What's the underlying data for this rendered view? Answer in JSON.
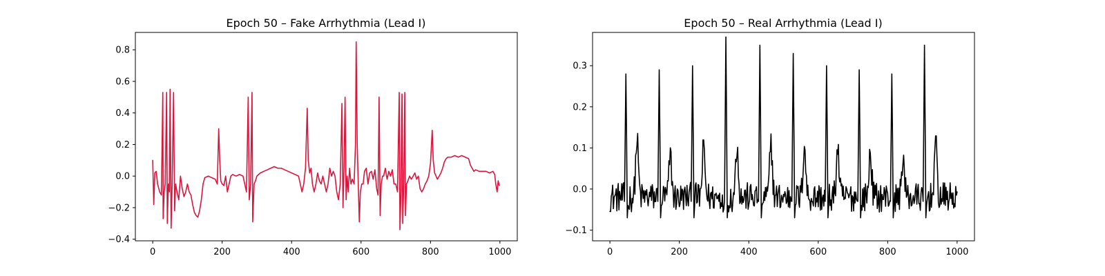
{
  "chart_data": [
    {
      "type": "line",
      "title": "Epoch 50 – Fake Arrhythmia (Lead I)",
      "xlabel": "",
      "ylabel": "",
      "xlim": [
        -50,
        1050
      ],
      "ylim": [
        -0.41,
        0.91
      ],
      "xticks": [
        0,
        200,
        400,
        600,
        800,
        1000
      ],
      "yticks": [
        -0.4,
        -0.2,
        0.0,
        0.2,
        0.4,
        0.6,
        0.8
      ],
      "xtick_labels": [
        "0",
        "200",
        "400",
        "600",
        "800",
        "1000"
      ],
      "ytick_labels": [
        "−0.4",
        "−0.2",
        "0.0",
        "0.2",
        "0.4",
        "0.6",
        "0.8"
      ],
      "grid": false,
      "series": [
        {
          "color": "#dc143c",
          "points": [
            [
              0,
              0.1
            ],
            [
              3,
              -0.18
            ],
            [
              6,
              0.02
            ],
            [
              10,
              0.03
            ],
            [
              14,
              -0.05
            ],
            [
              20,
              -0.1
            ],
            [
              25,
              -0.12
            ],
            [
              29,
              0.53
            ],
            [
              30,
              -0.27
            ],
            [
              33,
              -0.1
            ],
            [
              36,
              -0.05
            ],
            [
              40,
              0.53
            ],
            [
              42,
              -0.3
            ],
            [
              45,
              -0.05
            ],
            [
              48,
              -0.1
            ],
            [
              50,
              0.55
            ],
            [
              53,
              -0.33
            ],
            [
              56,
              -0.05
            ],
            [
              60,
              0.53
            ],
            [
              63,
              -0.22
            ],
            [
              66,
              -0.05
            ],
            [
              70,
              -0.1
            ],
            [
              75,
              -0.15
            ],
            [
              80,
              0.0
            ],
            [
              85,
              -0.08
            ],
            [
              90,
              -0.13
            ],
            [
              95,
              -0.1
            ],
            [
              100,
              -0.05
            ],
            [
              105,
              -0.1
            ],
            [
              110,
              -0.12
            ],
            [
              115,
              -0.18
            ],
            [
              120,
              -0.23
            ],
            [
              125,
              -0.25
            ],
            [
              130,
              -0.26
            ],
            [
              135,
              -0.22
            ],
            [
              140,
              -0.15
            ],
            [
              145,
              -0.05
            ],
            [
              150,
              -0.01
            ],
            [
              160,
              0.0
            ],
            [
              170,
              -0.01
            ],
            [
              180,
              -0.02
            ],
            [
              186,
              -0.05
            ],
            [
              190,
              0.3
            ],
            [
              193,
              0.1
            ],
            [
              196,
              -0.03
            ],
            [
              200,
              -0.05
            ],
            [
              205,
              -0.06
            ],
            [
              210,
              0.0
            ],
            [
              215,
              -0.1
            ],
            [
              220,
              -0.05
            ],
            [
              225,
              0.0
            ],
            [
              230,
              0.01
            ],
            [
              240,
              0.0
            ],
            [
              250,
              0.01
            ],
            [
              260,
              0.0
            ],
            [
              265,
              -0.05
            ],
            [
              270,
              -0.1
            ],
            [
              275,
              0.5
            ],
            [
              278,
              -0.15
            ],
            [
              282,
              -0.05
            ],
            [
              286,
              0.53
            ],
            [
              288,
              -0.29
            ],
            [
              292,
              -0.05
            ],
            [
              296,
              -0.03
            ],
            [
              300,
              0.0
            ],
            [
              310,
              0.02
            ],
            [
              320,
              0.03
            ],
            [
              330,
              0.04
            ],
            [
              340,
              0.05
            ],
            [
              350,
              0.06
            ],
            [
              360,
              0.05
            ],
            [
              370,
              0.05
            ],
            [
              380,
              0.04
            ],
            [
              390,
              0.03
            ],
            [
              400,
              0.02
            ],
            [
              410,
              0.01
            ],
            [
              420,
              0.0
            ],
            [
              425,
              -0.05
            ],
            [
              430,
              -0.1
            ],
            [
              435,
              -0.05
            ],
            [
              440,
              0.05
            ],
            [
              445,
              0.43
            ],
            [
              448,
              0.1
            ],
            [
              452,
              0.02
            ],
            [
              456,
              0.05
            ],
            [
              460,
              -0.05
            ],
            [
              465,
              -0.1
            ],
            [
              470,
              -0.05
            ],
            [
              475,
              0.02
            ],
            [
              480,
              -0.03
            ],
            [
              485,
              -0.05
            ],
            [
              490,
              0.0
            ],
            [
              495,
              -0.05
            ],
            [
              500,
              -0.1
            ],
            [
              505,
              -0.05
            ],
            [
              510,
              0.05
            ],
            [
              515,
              0.0
            ],
            [
              520,
              0.03
            ],
            [
              525,
              0.0
            ],
            [
              530,
              -0.1
            ],
            [
              535,
              -0.15
            ],
            [
              540,
              -0.05
            ],
            [
              545,
              0.46
            ],
            [
              548,
              -0.2
            ],
            [
              551,
              0.05
            ],
            [
              554,
              0.5
            ],
            [
              557,
              -0.15
            ],
            [
              560,
              0.0
            ],
            [
              563,
              -0.1
            ],
            [
              567,
              0.05
            ],
            [
              571,
              -0.05
            ],
            [
              575,
              -0.02
            ],
            [
              580,
              -0.05
            ],
            [
              584,
              0.2
            ],
            [
              586,
              0.85
            ],
            [
              589,
              0.2
            ],
            [
              592,
              -0.05
            ],
            [
              595,
              -0.29
            ],
            [
              598,
              -0.1
            ],
            [
              602,
              -0.05
            ],
            [
              606,
              -0.05
            ],
            [
              610,
              0.03
            ],
            [
              615,
              0.05
            ],
            [
              620,
              -0.05
            ],
            [
              625,
              0.02
            ],
            [
              630,
              0.03
            ],
            [
              635,
              -0.02
            ],
            [
              640,
              0.04
            ],
            [
              645,
              -0.08
            ],
            [
              649,
              -0.12
            ],
            [
              652,
              0.5
            ],
            [
              655,
              -0.25
            ],
            [
              658,
              -0.05
            ],
            [
              662,
              0.0
            ],
            [
              665,
              0.0
            ],
            [
              670,
              0.05
            ],
            [
              675,
              -0.02
            ],
            [
              680,
              0.03
            ],
            [
              685,
              0.0
            ],
            [
              690,
              0.04
            ],
            [
              695,
              -0.05
            ],
            [
              700,
              -0.05
            ],
            [
              705,
              -0.1
            ],
            [
              710,
              0.53
            ],
            [
              712,
              -0.34
            ],
            [
              715,
              -0.1
            ],
            [
              718,
              0.52
            ],
            [
              720,
              -0.3
            ],
            [
              723,
              -0.05
            ],
            [
              726,
              0.53
            ],
            [
              728,
              -0.25
            ],
            [
              731,
              -0.05
            ],
            [
              735,
              -0.03
            ],
            [
              740,
              0.0
            ],
            [
              745,
              -0.02
            ],
            [
              750,
              0.0
            ],
            [
              755,
              0.02
            ],
            [
              760,
              -0.02
            ],
            [
              765,
              0.0
            ],
            [
              770,
              -0.08
            ],
            [
              775,
              -0.1
            ],
            [
              780,
              -0.08
            ],
            [
              785,
              -0.05
            ],
            [
              790,
              -0.03
            ],
            [
              795,
              0.0
            ],
            [
              800,
              0.08
            ],
            [
              805,
              0.29
            ],
            [
              808,
              0.1
            ],
            [
              812,
              0.02
            ],
            [
              816,
              0.0
            ],
            [
              820,
              -0.02
            ],
            [
              825,
              0.0
            ],
            [
              830,
              0.02
            ],
            [
              835,
              0.05
            ],
            [
              840,
              0.09
            ],
            [
              845,
              0.11
            ],
            [
              850,
              0.12
            ],
            [
              860,
              0.12
            ],
            [
              870,
              0.13
            ],
            [
              880,
              0.12
            ],
            [
              890,
              0.13
            ],
            [
              900,
              0.12
            ],
            [
              910,
              0.11
            ],
            [
              915,
              0.07
            ],
            [
              920,
              0.05
            ],
            [
              925,
              0.03
            ],
            [
              930,
              0.04
            ],
            [
              940,
              0.03
            ],
            [
              950,
              0.03
            ],
            [
              960,
              0.03
            ],
            [
              970,
              0.02
            ],
            [
              980,
              0.03
            ],
            [
              985,
              0.01
            ],
            [
              988,
              -0.05
            ],
            [
              992,
              -0.1
            ],
            [
              995,
              -0.03
            ],
            [
              998,
              -0.06
            ]
          ]
        }
      ]
    },
    {
      "type": "line",
      "title": "Epoch 50 – Real Arrhythmia (Lead I)",
      "xlabel": "",
      "ylabel": "",
      "xlim": [
        -50,
        1050
      ],
      "ylim": [
        -0.126,
        0.381
      ],
      "xticks": [
        0,
        200,
        400,
        600,
        800,
        1000
      ],
      "yticks": [
        -0.1,
        0.0,
        0.1,
        0.2,
        0.3
      ],
      "xtick_labels": [
        "0",
        "200",
        "400",
        "600",
        "800",
        "1000"
      ],
      "ytick_labels": [
        "−0.1",
        "0.0",
        "0.1",
        "0.2",
        "0.3"
      ],
      "grid": false,
      "beats": [
        46,
        142,
        238,
        334,
        432,
        528,
        624,
        718,
        812,
        906
      ],
      "beat_peaks": [
        0.28,
        0.29,
        0.3,
        0.37,
        0.35,
        0.33,
        0.3,
        0.29,
        0.28,
        0.35
      ],
      "t_peaks": [
        0.14,
        0.1,
        0.12,
        0.13,
        0.13,
        0.13,
        0.12,
        0.11,
        0.1,
        0.13
      ],
      "series": [
        {
          "color": "#000000",
          "x_start": 0,
          "x_end": 1000,
          "baseline": -0.02,
          "noise_amplitude": 0.04
        }
      ]
    }
  ]
}
